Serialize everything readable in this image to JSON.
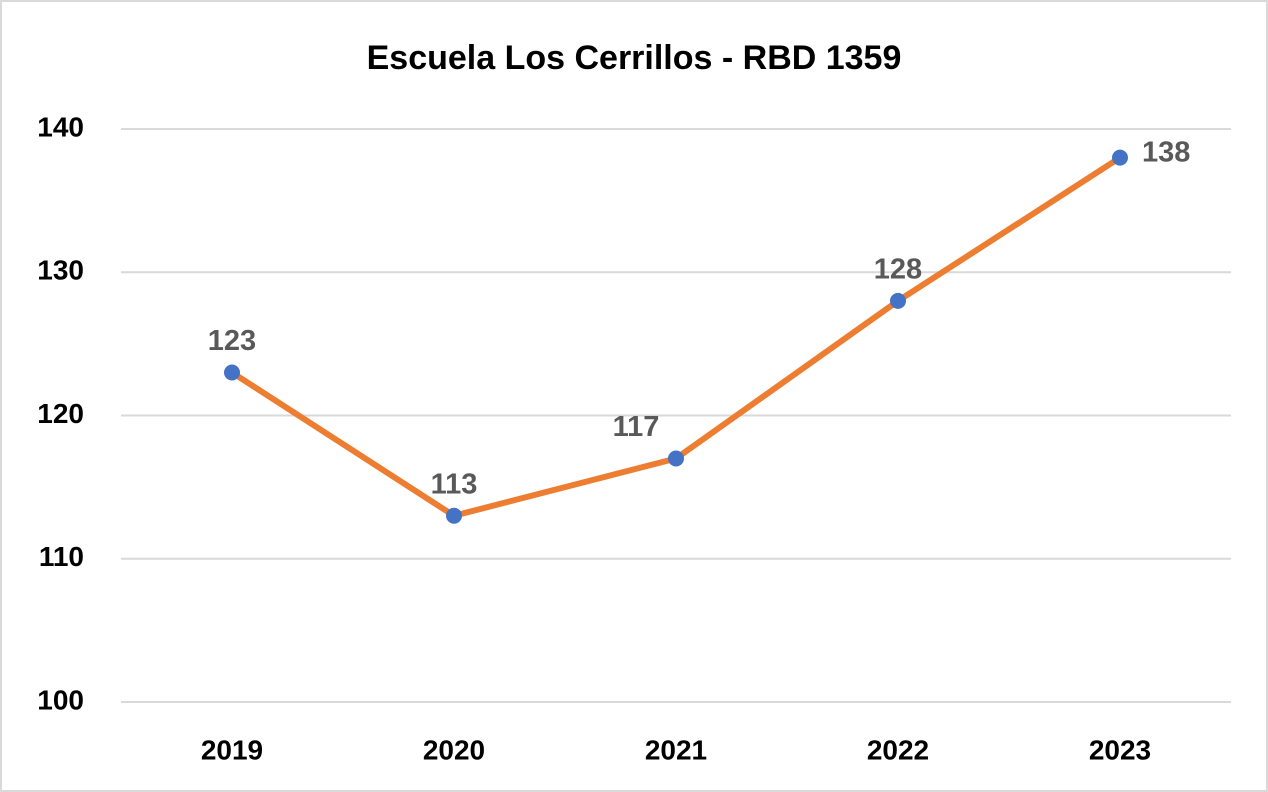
{
  "chart_data": {
    "type": "line",
    "title": "Escuela Los Cerrillos - RBD 1359",
    "categories": [
      "2019",
      "2020",
      "2021",
      "2022",
      "2023"
    ],
    "values": [
      123,
      113,
      117,
      128,
      138
    ],
    "color": "#ed7d31",
    "marker_color": "#4472c4",
    "ylim": [
      100,
      140
    ],
    "yticks": [
      100,
      110,
      120,
      130,
      140
    ],
    "grid": true,
    "data_labels": true
  }
}
